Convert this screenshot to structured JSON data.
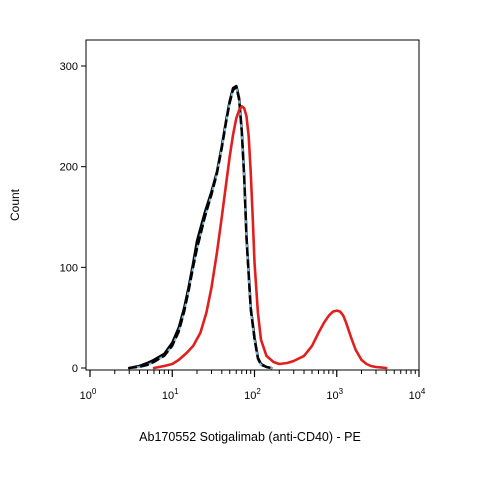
{
  "chart_data": {
    "type": "line",
    "title": "",
    "xlabel": "Ab170552 Sotigalimab (anti-CD40) - PE",
    "ylabel": "Count",
    "x_scale": "log",
    "xlim": [
      1,
      10000
    ],
    "ylim": [
      0,
      300
    ],
    "grid": false,
    "legend": "none",
    "x_ticks": [
      {
        "value": 1,
        "base": "10",
        "exp": "0"
      },
      {
        "value": 10,
        "base": "10",
        "exp": "1"
      },
      {
        "value": 100,
        "base": "10",
        "exp": "2"
      },
      {
        "value": 1000,
        "base": "10",
        "exp": "3"
      },
      {
        "value": 10000,
        "base": "10",
        "exp": "4"
      }
    ],
    "y_ticks": [
      {
        "value": 0,
        "label": "0"
      },
      {
        "value": 100,
        "label": "100"
      },
      {
        "value": 200,
        "label": "200"
      },
      {
        "value": 300,
        "label": "300"
      }
    ],
    "series": [
      {
        "color": "#000000",
        "style": "solid-thick",
        "x": [
          3,
          4,
          5,
          6,
          8,
          10,
          12,
          14,
          16,
          18,
          20,
          25,
          30,
          35,
          40,
          45,
          50,
          55,
          60,
          65,
          70,
          75,
          80,
          90,
          100,
          110,
          120,
          140,
          160
        ],
        "y": [
          0,
          2,
          5,
          8,
          14,
          25,
          40,
          60,
          82,
          104,
          126,
          155,
          175,
          195,
          220,
          245,
          265,
          278,
          280,
          268,
          235,
          190,
          130,
          60,
          30,
          10,
          4,
          1,
          0
        ]
      },
      {
        "color": "#7FB6DE",
        "style": "solid",
        "x": [
          3,
          4,
          5,
          6,
          8,
          10,
          12,
          14,
          16,
          18,
          20,
          25,
          30,
          35,
          40,
          45,
          50,
          55,
          60,
          65,
          70,
          75,
          80,
          90,
          100,
          110,
          120,
          140,
          160
        ],
        "y": [
          0,
          1,
          3,
          6,
          12,
          22,
          36,
          56,
          78,
          100,
          118,
          150,
          172,
          193,
          218,
          243,
          263,
          276,
          279,
          266,
          234,
          188,
          128,
          58,
          28,
          9,
          3,
          1,
          0
        ]
      },
      {
        "color": "#000000",
        "style": "dashed",
        "x": [
          3,
          4,
          5,
          6,
          8,
          10,
          12,
          14,
          16,
          18,
          20,
          25,
          30,
          35,
          40,
          45,
          50,
          55,
          60,
          65,
          70,
          75,
          80,
          90,
          100,
          110,
          120,
          140,
          160
        ],
        "y": [
          0,
          1,
          3,
          6,
          12,
          22,
          36,
          56,
          78,
          100,
          118,
          150,
          172,
          193,
          218,
          243,
          263,
          276,
          279,
          266,
          234,
          188,
          128,
          58,
          28,
          9,
          3,
          1,
          0
        ]
      },
      {
        "color": "#E0201F",
        "style": "solid-thick",
        "x": [
          6,
          8,
          10,
          12,
          15,
          18,
          22,
          26,
          30,
          35,
          40,
          45,
          50,
          55,
          60,
          65,
          70,
          75,
          80,
          85,
          90,
          95,
          100,
          110,
          120,
          140,
          170,
          200,
          250,
          300,
          400,
          500,
          600,
          700,
          800,
          900,
          1000,
          1100,
          1200,
          1300,
          1500,
          1700,
          2000,
          2300,
          2600,
          3000,
          4000
        ],
        "y": [
          0,
          2,
          4,
          8,
          15,
          22,
          35,
          55,
          80,
          115,
          150,
          182,
          210,
          232,
          248,
          256,
          260,
          258,
          250,
          230,
          195,
          150,
          105,
          55,
          28,
          12,
          6,
          4,
          5,
          7,
          12,
          22,
          35,
          45,
          52,
          56,
          57,
          56,
          52,
          45,
          30,
          18,
          8,
          4,
          2,
          1,
          0
        ]
      }
    ]
  }
}
